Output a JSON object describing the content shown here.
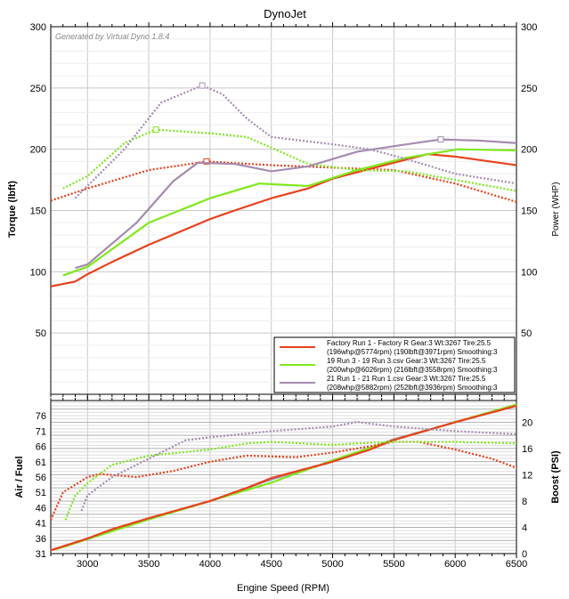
{
  "chart_data": [
    {
      "type": "line",
      "title": "DynoJet",
      "watermark": "Generated by Virtual Dyno 1.8.4",
      "ylabel": "Torque (lbft)",
      "y2label": "Power (WHP)",
      "xlim": [
        2700,
        6500
      ],
      "ylim": [
        0,
        300
      ],
      "y2lim": [
        0,
        300
      ],
      "yticks": [
        50,
        100,
        150,
        200,
        250,
        300
      ],
      "grid": true,
      "legend_position": "bottom-right",
      "legend": [
        {
          "line1": "Factory Run 1 - Factory R Gear:3 Wt:3267 Tire:25.5",
          "line2": "(196whp@5774rpm)  (190lbft@3971rpm)  Smoothing:3",
          "color": "#e8411c"
        },
        {
          "line1": "19 Run 3 - 19 Run 3.csv Gear:3 Wt:3267 Tire:25.5",
          "line2": "(200whp@6026rpm)  (216lbft@3558rpm)  Smoothing:3",
          "color": "#7fe81c"
        },
        {
          "line1": "21 Run 1 - 21 Run 1.csv Gear:3 Wt:3267 Tire:25.5",
          "line2": "(208whp@5882rpm)  (252lbft@3936rpm)  Smoothing:3",
          "color": "#a58bb0"
        }
      ],
      "series": [
        {
          "color": "#e8411c",
          "style": "solid",
          "points": [
            [
              2700,
              88
            ],
            [
              2900,
              92
            ],
            [
              3000,
              98
            ],
            [
              3200,
              108
            ],
            [
              3500,
              122
            ],
            [
              4000,
              143
            ],
            [
              4200,
              150
            ],
            [
              4500,
              160
            ],
            [
              4800,
              168
            ],
            [
              5000,
              176
            ],
            [
              5500,
              189
            ],
            [
              5774,
              196
            ],
            [
              6000,
              194
            ],
            [
              6500,
              187
            ]
          ]
        },
        {
          "color": "#e8411c",
          "style": "dotted",
          "points": [
            [
              2700,
              158
            ],
            [
              3000,
              168
            ],
            [
              3500,
              183
            ],
            [
              3971,
              190
            ],
            [
              4500,
              187
            ],
            [
              5000,
              185
            ],
            [
              5500,
              183
            ],
            [
              6000,
              172
            ],
            [
              6500,
              157
            ]
          ],
          "marker": [
            3971,
            190
          ]
        },
        {
          "color": "#7fe81c",
          "style": "solid",
          "points": [
            [
              2800,
              97
            ],
            [
              3000,
              104
            ],
            [
              3500,
              140
            ],
            [
              3800,
              152
            ],
            [
              4000,
              160
            ],
            [
              4400,
              172
            ],
            [
              4800,
              170
            ],
            [
              5200,
              183
            ],
            [
              5600,
              193
            ],
            [
              6026,
              200
            ],
            [
              6500,
              199
            ]
          ]
        },
        {
          "color": "#7fe81c",
          "style": "dotted",
          "points": [
            [
              2800,
              168
            ],
            [
              3000,
              178
            ],
            [
              3300,
              205
            ],
            [
              3558,
              216
            ],
            [
              4000,
              213
            ],
            [
              4300,
              210
            ],
            [
              4800,
              188
            ],
            [
              5200,
              183
            ],
            [
              5600,
              182
            ],
            [
              6000,
              175
            ],
            [
              6500,
              166
            ]
          ],
          "marker": [
            3558,
            216
          ]
        },
        {
          "color": "#a58bb0",
          "style": "solid",
          "points": [
            [
              2900,
              103
            ],
            [
              3000,
              106
            ],
            [
              3400,
              140
            ],
            [
              3700,
              174
            ],
            [
              3900,
              189
            ],
            [
              4200,
              188
            ],
            [
              4500,
              182
            ],
            [
              4800,
              186
            ],
            [
              5200,
              198
            ],
            [
              5600,
              204
            ],
            [
              5882,
              208
            ],
            [
              6200,
              207
            ],
            [
              6500,
              205
            ]
          ],
          "marker": [
            5882,
            208
          ]
        },
        {
          "color": "#a58bb0",
          "style": "dotted",
          "points": [
            [
              2900,
              160
            ],
            [
              3000,
              170
            ],
            [
              3300,
              200
            ],
            [
              3600,
              238
            ],
            [
              3936,
              252
            ],
            [
              4100,
              245
            ],
            [
              4300,
              225
            ],
            [
              4500,
              210
            ],
            [
              5000,
              204
            ],
            [
              5300,
              200
            ],
            [
              5600,
              192
            ],
            [
              6000,
              180
            ],
            [
              6500,
              172
            ]
          ],
          "marker": [
            3936,
            252
          ]
        }
      ]
    },
    {
      "type": "line",
      "xlabel": "Engine Speed (RPM)",
      "ylabel": "Air / Fuel",
      "y2label": "Boost (PSI)",
      "xlim": [
        2700,
        6500
      ],
      "xticks": [
        3000,
        3500,
        4000,
        4500,
        5000,
        5500,
        6000,
        6500
      ],
      "ylim": [
        31,
        81
      ],
      "yticks": [
        31,
        36,
        41,
        46,
        51,
        56,
        61,
        66,
        71,
        76
      ],
      "y2lim": [
        0,
        23.3
      ],
      "y2ticks": [
        0,
        4,
        8,
        12,
        16,
        20
      ],
      "grid": true,
      "series": [
        {
          "color": "#a58bb0",
          "axis": "y2",
          "style": "solid",
          "points": [
            [
              2700,
              0.5
            ],
            [
              3000,
              2.3
            ],
            [
              3500,
              5.3
            ],
            [
              4000,
              8
            ],
            [
              4500,
              11.3
            ],
            [
              5000,
              14
            ],
            [
              5500,
              17.4
            ],
            [
              6000,
              20
            ],
            [
              6500,
              22.5
            ]
          ]
        },
        {
          "color": "#7fe81c",
          "axis": "y2",
          "style": "solid",
          "points": [
            [
              2750,
              0.7
            ],
            [
              3000,
              2.2
            ],
            [
              3500,
              5.2
            ],
            [
              4000,
              8
            ],
            [
              4500,
              10.8
            ],
            [
              5000,
              14.2
            ],
            [
              5500,
              17.3
            ],
            [
              6000,
              20
            ],
            [
              6500,
              22.7
            ]
          ]
        },
        {
          "color": "#e8411c",
          "axis": "y2",
          "style": "solid",
          "points": [
            [
              2700,
              0.5
            ],
            [
              3000,
              2.3
            ],
            [
              3200,
              3.7
            ],
            [
              3500,
              5.4
            ],
            [
              4000,
              8
            ],
            [
              4300,
              10
            ],
            [
              4500,
              11.5
            ],
            [
              5000,
              14
            ],
            [
              5300,
              15.8
            ],
            [
              5500,
              17.3
            ],
            [
              6000,
              20
            ],
            [
              6500,
              22.5
            ]
          ]
        },
        {
          "color": "#e8411c",
          "axis": "y",
          "style": "dotted",
          "points": [
            [
              2700,
              42
            ],
            [
              2800,
              51
            ],
            [
              3000,
              56
            ],
            [
              3100,
              57
            ],
            [
              3400,
              56
            ],
            [
              3700,
              58
            ],
            [
              4000,
              61
            ],
            [
              4300,
              63
            ],
            [
              4700,
              62.5
            ],
            [
              5000,
              64
            ],
            [
              5300,
              66
            ],
            [
              5500,
              67.5
            ],
            [
              5700,
              67.5
            ],
            [
              6000,
              65
            ],
            [
              6300,
              62
            ],
            [
              6500,
              59
            ]
          ]
        },
        {
          "color": "#7fe81c",
          "axis": "y",
          "style": "dotted",
          "points": [
            [
              2820,
              42
            ],
            [
              2900,
              50
            ],
            [
              3000,
              54
            ],
            [
              3200,
              60
            ],
            [
              3500,
              63
            ],
            [
              4000,
              65
            ],
            [
              4300,
              67
            ],
            [
              4500,
              67.5
            ],
            [
              5000,
              66.5
            ],
            [
              5200,
              67
            ],
            [
              5500,
              67.5
            ],
            [
              6000,
              67.5
            ],
            [
              6500,
              67
            ]
          ]
        },
        {
          "color": "#a58bb0",
          "axis": "y",
          "style": "dotted",
          "points": [
            [
              2950,
              45
            ],
            [
              3000,
              50
            ],
            [
              3200,
              56
            ],
            [
              3500,
              62
            ],
            [
              3800,
              68
            ],
            [
              4000,
              69
            ],
            [
              4500,
              71
            ],
            [
              5000,
              72.5
            ],
            [
              5200,
              74
            ],
            [
              5500,
              72.5
            ],
            [
              6000,
              71
            ],
            [
              6500,
              70
            ]
          ]
        }
      ]
    }
  ]
}
